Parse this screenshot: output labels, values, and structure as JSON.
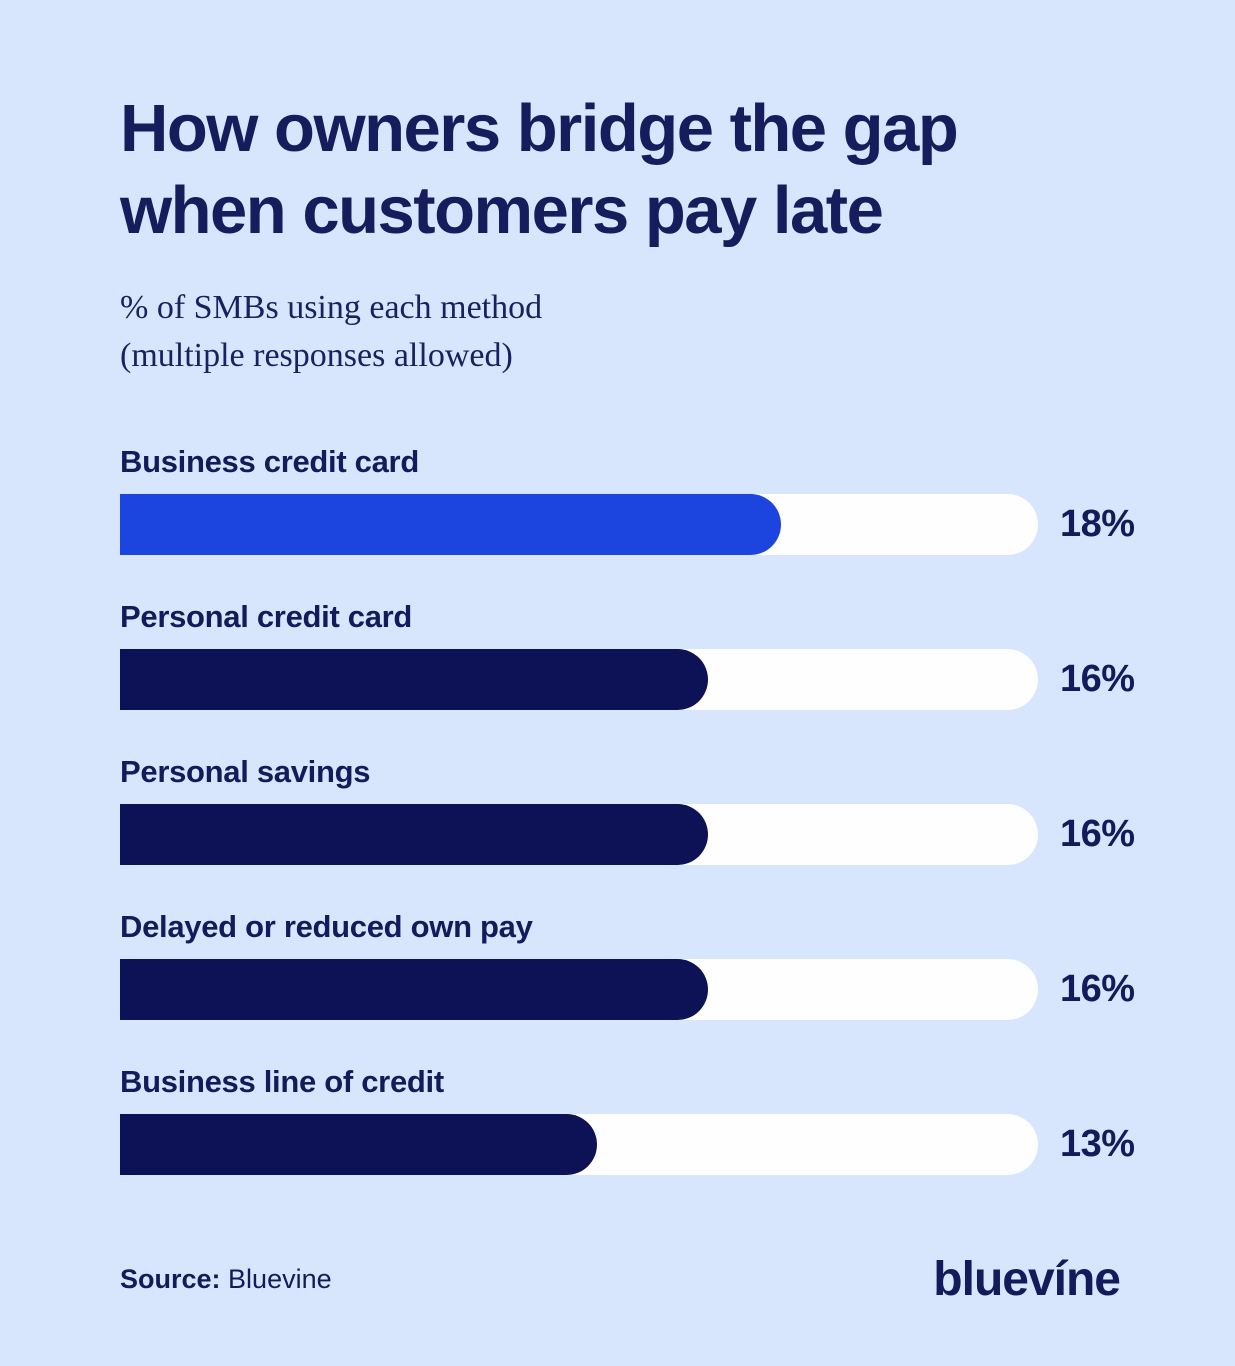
{
  "colors": {
    "background": "#d7e5fd",
    "accent_blue": "#1c45e0",
    "navy": "#0d1155",
    "track_white": "#fefefe",
    "text_navy": "#171d5c"
  },
  "header": {
    "title_lines": [
      "How owners bridge the gap",
      "when customers pay late"
    ],
    "subtitle_lines": [
      "% of SMBs using each method",
      "(multiple responses allowed)"
    ]
  },
  "chart_data": {
    "type": "bar",
    "orientation": "horizontal",
    "title": "How owners bridge the gap when customers pay late",
    "subtitle": "% of SMBs using each method (multiple responses allowed)",
    "categories": [
      "Business credit card",
      "Personal credit card",
      "Personal savings",
      "Delayed or reduced own pay",
      "Business line of credit"
    ],
    "values": [
      18,
      16,
      16,
      16,
      13
    ],
    "value_labels": [
      "18%",
      "16%",
      "16%",
      "16%",
      "13%"
    ],
    "xlim": [
      0,
      25
    ],
    "bar_colors": [
      "#1c45e0",
      "#0d1155",
      "#0d1155",
      "#0d1155",
      "#0d1155"
    ],
    "track_color": "#fefefe",
    "grid": false,
    "legend": false
  },
  "footer": {
    "source_label": "Source:",
    "source_value": "Bluevine",
    "brand_logo": "bluevíne"
  }
}
